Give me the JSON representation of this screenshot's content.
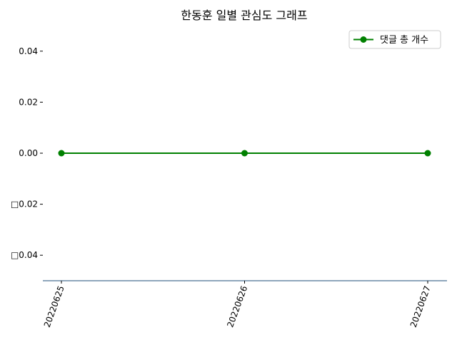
{
  "chart_data": {
    "type": "line",
    "title": "한동훈 일별 관심도 그래프",
    "xlabel": "",
    "ylabel": "",
    "categories": [
      "20220625",
      "20220626",
      "20220627"
    ],
    "series": [
      {
        "name": "댓글 총 개수",
        "values": [
          0,
          0,
          0
        ],
        "color": "#008000",
        "marker": "circle"
      }
    ],
    "ylim": [
      -0.05,
      0.05
    ],
    "yticks": [
      0.04,
      0.02,
      0.0,
      -0.02,
      -0.04
    ],
    "ytick_labels": [
      "0.04",
      "0.02",
      "0.00",
      "□0.02",
      "□0.04"
    ],
    "grid": false,
    "legend_position": "top-right",
    "xaxis_color": "#1f4e79"
  }
}
